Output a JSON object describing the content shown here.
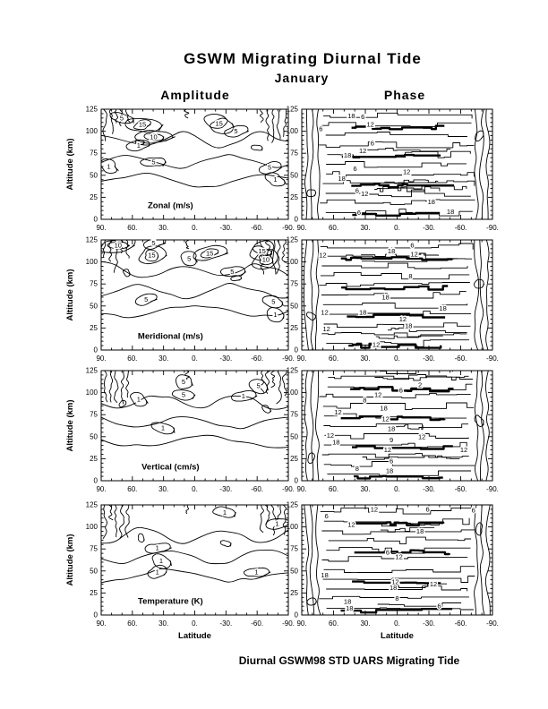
{
  "page": {
    "title": "GSWM Migrating Diurnal Tide",
    "subtitle": "January",
    "caption": "Diurnal GSWM98 STD UARS Migrating Tide"
  },
  "columns": [
    {
      "label": "Amplitude"
    },
    {
      "label": "Phase"
    }
  ],
  "axes": {
    "xlabel": "Latitude",
    "ylabel": "Altitude (km)",
    "x_ticks": [
      "90.",
      "60.",
      "30.",
      "0.",
      "-30.",
      "-60.",
      "-90."
    ],
    "y_ticks": [
      "0",
      "25",
      "50",
      "75",
      "100",
      "125"
    ],
    "x_range": [
      90,
      -90
    ],
    "y_range": [
      0,
      125
    ]
  },
  "colors": {
    "ink": "#000000",
    "paper": "#ffffff"
  },
  "chart_data": [
    {
      "type": "contour",
      "row": "Zonal",
      "column": "Amplitude",
      "panel_label": "Zonal (m/s)",
      "labeled_levels": [
        "1",
        "5",
        "10",
        "15"
      ],
      "labels": [
        {
          "v": "5",
          "fx": 0.11,
          "fy": 0.08
        },
        {
          "v": "15",
          "fx": 0.22,
          "fy": 0.14
        },
        {
          "v": "10",
          "fx": 0.28,
          "fy": 0.25
        },
        {
          "v": "1",
          "fx": 0.2,
          "fy": 0.33
        },
        {
          "v": "5",
          "fx": 0.28,
          "fy": 0.48
        },
        {
          "v": "1",
          "fx": 0.04,
          "fy": 0.52
        },
        {
          "v": "15",
          "fx": 0.63,
          "fy": 0.13
        },
        {
          "v": "5",
          "fx": 0.72,
          "fy": 0.2
        },
        {
          "v": "5",
          "fx": 0.9,
          "fy": 0.53
        },
        {
          "v": "1",
          "fx": 0.93,
          "fy": 0.64
        }
      ]
    },
    {
      "type": "contour",
      "row": "Zonal",
      "column": "Phase",
      "panel_label": null,
      "labeled_levels": [
        "6",
        "12",
        "18"
      ],
      "labels": [
        {
          "v": "18",
          "fx": 0.26,
          "fy": 0.06
        },
        {
          "v": "6",
          "fx": 0.32,
          "fy": 0.07
        },
        {
          "v": "12",
          "fx": 0.36,
          "fy": 0.14
        },
        {
          "v": "6",
          "fx": 0.1,
          "fy": 0.18
        },
        {
          "v": "6",
          "fx": 0.37,
          "fy": 0.31
        },
        {
          "v": "12",
          "fx": 0.32,
          "fy": 0.38
        },
        {
          "v": "18",
          "fx": 0.24,
          "fy": 0.42
        },
        {
          "v": "6",
          "fx": 0.28,
          "fy": 0.54
        },
        {
          "v": "12",
          "fx": 0.55,
          "fy": 0.57
        },
        {
          "v": "18",
          "fx": 0.21,
          "fy": 0.63
        },
        {
          "v": "6",
          "fx": 0.29,
          "fy": 0.74
        },
        {
          "v": "12",
          "fx": 0.33,
          "fy": 0.77
        },
        {
          "v": "18",
          "fx": 0.68,
          "fy": 0.84
        },
        {
          "v": "6",
          "fx": 0.3,
          "fy": 0.94
        },
        {
          "v": "18",
          "fx": 0.78,
          "fy": 0.93
        }
      ]
    },
    {
      "type": "contour",
      "row": "Meridional",
      "column": "Amplitude",
      "panel_label": "Meridional (m/s)",
      "labeled_levels": [
        "1",
        "5",
        "10",
        "15"
      ],
      "labels": [
        {
          "v": "10",
          "fx": 0.09,
          "fy": 0.05
        },
        {
          "v": "5",
          "fx": 0.28,
          "fy": 0.03
        },
        {
          "v": "15",
          "fx": 0.27,
          "fy": 0.14
        },
        {
          "v": "5",
          "fx": 0.47,
          "fy": 0.17
        },
        {
          "v": "15",
          "fx": 0.58,
          "fy": 0.12
        },
        {
          "v": "15",
          "fx": 0.86,
          "fy": 0.1
        },
        {
          "v": "10",
          "fx": 0.88,
          "fy": 0.18
        },
        {
          "v": "5",
          "fx": 0.7,
          "fy": 0.29
        },
        {
          "v": "5",
          "fx": 0.24,
          "fy": 0.54
        },
        {
          "v": "5",
          "fx": 0.92,
          "fy": 0.56
        },
        {
          "v": "1",
          "fx": 0.93,
          "fy": 0.68
        }
      ]
    },
    {
      "type": "contour",
      "row": "Meridional",
      "column": "Phase",
      "panel_label": null,
      "labeled_levels": [
        "6",
        "8",
        "12",
        "18"
      ],
      "labels": [
        {
          "v": "12",
          "fx": 0.11,
          "fy": 0.14
        },
        {
          "v": "18",
          "fx": 0.47,
          "fy": 0.1
        },
        {
          "v": "6",
          "fx": 0.58,
          "fy": 0.05
        },
        {
          "v": "12",
          "fx": 0.59,
          "fy": 0.13
        },
        {
          "v": "8",
          "fx": 0.57,
          "fy": 0.33
        },
        {
          "v": "18",
          "fx": 0.44,
          "fy": 0.52
        },
        {
          "v": "12",
          "fx": 0.12,
          "fy": 0.66
        },
        {
          "v": "18",
          "fx": 0.32,
          "fy": 0.66
        },
        {
          "v": "18",
          "fx": 0.74,
          "fy": 0.62
        },
        {
          "v": "12",
          "fx": 0.53,
          "fy": 0.72
        },
        {
          "v": "18",
          "fx": 0.56,
          "fy": 0.78
        },
        {
          "v": "12",
          "fx": 0.13,
          "fy": 0.81
        },
        {
          "v": "12",
          "fx": 0.39,
          "fy": 0.95
        }
      ]
    },
    {
      "type": "contour",
      "row": "Vertical",
      "column": "Amplitude",
      "panel_label": "Vertical (cm/s)",
      "labeled_levels": [
        "1",
        "5"
      ],
      "labels": [
        {
          "v": "5",
          "fx": 0.44,
          "fy": 0.1
        },
        {
          "v": "5",
          "fx": 0.84,
          "fy": 0.14
        },
        {
          "v": "1",
          "fx": 0.2,
          "fy": 0.26
        },
        {
          "v": "5",
          "fx": 0.44,
          "fy": 0.22
        },
        {
          "v": "1",
          "fx": 0.76,
          "fy": 0.23
        },
        {
          "v": "1",
          "fx": 0.33,
          "fy": 0.52
        }
      ]
    },
    {
      "type": "contour",
      "row": "Vertical",
      "column": "Phase",
      "panel_label": null,
      "labeled_levels": [
        "2",
        "6",
        "8",
        "9",
        "12",
        "18"
      ],
      "labels": [
        {
          "v": "2",
          "fx": 0.62,
          "fy": 0.13
        },
        {
          "v": "6",
          "fx": 0.52,
          "fy": 0.18
        },
        {
          "v": "12",
          "fx": 0.4,
          "fy": 0.22
        },
        {
          "v": "8",
          "fx": 0.33,
          "fy": 0.27
        },
        {
          "v": "18",
          "fx": 0.43,
          "fy": 0.34
        },
        {
          "v": "12",
          "fx": 0.19,
          "fy": 0.38
        },
        {
          "v": "12",
          "fx": 0.44,
          "fy": 0.44
        },
        {
          "v": "18",
          "fx": 0.47,
          "fy": 0.53
        },
        {
          "v": "12",
          "fx": 0.15,
          "fy": 0.59
        },
        {
          "v": "18",
          "fx": 0.18,
          "fy": 0.65
        },
        {
          "v": "9",
          "fx": 0.47,
          "fy": 0.63
        },
        {
          "v": "12",
          "fx": 0.63,
          "fy": 0.6
        },
        {
          "v": "12",
          "fx": 0.45,
          "fy": 0.72
        },
        {
          "v": "12",
          "fx": 0.85,
          "fy": 0.72
        },
        {
          "v": "6",
          "fx": 0.47,
          "fy": 0.82
        },
        {
          "v": "8",
          "fx": 0.29,
          "fy": 0.89
        },
        {
          "v": "18",
          "fx": 0.46,
          "fy": 0.91
        }
      ]
    },
    {
      "type": "contour",
      "row": "Temperature",
      "column": "Amplitude",
      "panel_label": "Temperature (K)",
      "labeled_levels": [
        "1"
      ],
      "labels": [
        {
          "v": "1",
          "fx": 0.66,
          "fy": 0.07
        },
        {
          "v": "1",
          "fx": 0.94,
          "fy": 0.17
        },
        {
          "v": "1",
          "fx": 0.3,
          "fy": 0.39
        },
        {
          "v": "1",
          "fx": 0.32,
          "fy": 0.51
        },
        {
          "v": "1",
          "fx": 0.3,
          "fy": 0.61
        },
        {
          "v": "1",
          "fx": 0.83,
          "fy": 0.61
        }
      ]
    },
    {
      "type": "contour",
      "row": "Temperature",
      "column": "Phase",
      "panel_label": null,
      "labeled_levels": [
        "6",
        "8",
        "12",
        "18"
      ],
      "labels": [
        {
          "v": "6",
          "fx": 0.13,
          "fy": 0.1
        },
        {
          "v": "12",
          "fx": 0.26,
          "fy": 0.18
        },
        {
          "v": "12",
          "fx": 0.38,
          "fy": 0.04
        },
        {
          "v": "6",
          "fx": 0.66,
          "fy": 0.04
        },
        {
          "v": "6",
          "fx": 0.9,
          "fy": 0.05
        },
        {
          "v": "18",
          "fx": 0.62,
          "fy": 0.24
        },
        {
          "v": "6",
          "fx": 0.45,
          "fy": 0.43
        },
        {
          "v": "12",
          "fx": 0.51,
          "fy": 0.47
        },
        {
          "v": "18",
          "fx": 0.12,
          "fy": 0.64
        },
        {
          "v": "12",
          "fx": 0.49,
          "fy": 0.7
        },
        {
          "v": "18",
          "fx": 0.48,
          "fy": 0.75
        },
        {
          "v": "12",
          "fx": 0.69,
          "fy": 0.72
        },
        {
          "v": "8",
          "fx": 0.5,
          "fy": 0.85
        },
        {
          "v": "18",
          "fx": 0.24,
          "fy": 0.88
        },
        {
          "v": "18",
          "fx": 0.25,
          "fy": 0.94
        },
        {
          "v": "6",
          "fx": 0.72,
          "fy": 0.92
        }
      ]
    }
  ]
}
